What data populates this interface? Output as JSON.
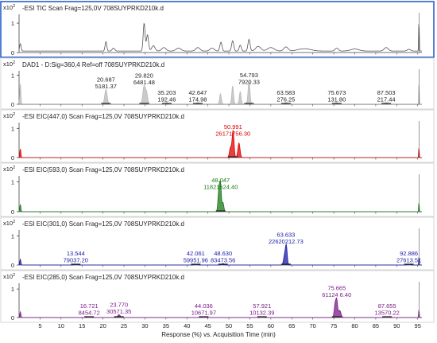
{
  "x_axis": {
    "label": "Response (%) vs. Acquisition Time (min)",
    "ticks": [
      5,
      10,
      15,
      20,
      25,
      30,
      35,
      40,
      45,
      50,
      55,
      60,
      65,
      70,
      75,
      80,
      85,
      90,
      95
    ],
    "range": [
      0,
      96
    ]
  },
  "chart_data": [
    {
      "type": "line",
      "title": "-ESI TIC Scan Frag=125,0V 708SUYPRKD210k.d",
      "ymult": "x10 2",
      "yticks": [
        "1",
        "0"
      ],
      "ylim": [
        0,
        1.3
      ],
      "color": "#555555",
      "fill": false,
      "selected": true,
      "baseline": 0.05,
      "peaks": [
        [
          0.3,
          0.25,
          0.18
        ],
        [
          20.7,
          0.32,
          0.2
        ],
        [
          22.5,
          0.1,
          0.3
        ],
        [
          29.8,
          0.95,
          0.22
        ],
        [
          30.6,
          0.55,
          0.25
        ],
        [
          32,
          0.18,
          0.4
        ],
        [
          34.5,
          0.12,
          0.5
        ],
        [
          38,
          0.1,
          0.6
        ],
        [
          42.6,
          0.12,
          0.5
        ],
        [
          46,
          0.1,
          0.5
        ],
        [
          48.1,
          0.3,
          0.25
        ],
        [
          50.9,
          0.35,
          0.25
        ],
        [
          52.7,
          0.2,
          0.25
        ],
        [
          54.8,
          0.4,
          0.25
        ],
        [
          57,
          0.16,
          0.6
        ],
        [
          60,
          0.12,
          0.8
        ],
        [
          63.6,
          0.14,
          0.5
        ],
        [
          68,
          0.08,
          1.5
        ],
        [
          75.7,
          0.1,
          0.4
        ],
        [
          80,
          0.07,
          1
        ],
        [
          87.5,
          0.12,
          0.5
        ],
        [
          92.9,
          0.06,
          0.4
        ],
        [
          95.3,
          1.25,
          0.06
        ]
      ],
      "annotations": []
    },
    {
      "type": "area",
      "title": "DAD1 - D:Sig=360,4  Ref=off 708SUYPRKD210k.d",
      "ymult": "x10 2",
      "yticks": [
        "1",
        "0"
      ],
      "ylim": [
        0,
        1.15
      ],
      "color": "#b8b8b8",
      "fill": true,
      "selected": false,
      "baseline": 0.01,
      "peaks": [
        [
          0.3,
          0.7,
          0.12
        ],
        [
          20.7,
          0.5,
          0.28
        ],
        [
          29.8,
          0.62,
          0.3
        ],
        [
          30.4,
          0.35,
          0.25
        ],
        [
          35.2,
          0.05,
          0.3
        ],
        [
          42.6,
          0.05,
          0.3
        ],
        [
          48,
          0.35,
          0.2
        ],
        [
          50.9,
          0.62,
          0.2
        ],
        [
          52.7,
          0.42,
          0.2
        ],
        [
          54.8,
          0.8,
          0.22
        ],
        [
          63.6,
          0.05,
          0.3
        ],
        [
          75.7,
          0.05,
          0.3
        ],
        [
          87.5,
          0.05,
          0.3
        ],
        [
          95.3,
          0.9,
          0.06
        ]
      ],
      "annotations": [
        {
          "t": "20.687",
          "v": "5181.37",
          "x": 20.7
        },
        {
          "t": "29.820",
          "v": "6481.48",
          "x": 29.8
        },
        {
          "t": "35.203",
          "v": "192.46",
          "x": 35.2
        },
        {
          "t": "42.647",
          "v": "174.98",
          "x": 42.6
        },
        {
          "t": "54.793",
          "v": "7920.33",
          "x": 54.8
        },
        {
          "t": "63.583",
          "v": "276.25",
          "x": 63.6
        },
        {
          "t": "75.673",
          "v": "131.80",
          "x": 75.7
        },
        {
          "t": "87.503",
          "v": "217.44",
          "x": 87.5
        }
      ]
    },
    {
      "type": "line",
      "title": "-ESI EIC(447,0) Scan Frag=125,0V 708SUYPRKD210k.d",
      "ymult": "x10 2",
      "yticks": [
        "1",
        "0"
      ],
      "ylim": [
        0,
        1.2
      ],
      "color": "#dd0000",
      "fill": true,
      "selected": false,
      "baseline": 0.0,
      "peaks": [
        [
          0.3,
          0.3,
          0.12
        ],
        [
          50.4,
          0.35,
          0.25
        ],
        [
          51.0,
          0.92,
          0.22
        ],
        [
          52.4,
          0.5,
          0.25
        ],
        [
          95.3,
          0.5,
          0.05
        ]
      ],
      "annotations": [
        {
          "t": "50.991",
          "v": "26171756.30",
          "x": 50.99
        }
      ]
    },
    {
      "type": "line",
      "title": "-ESI EIC(593,0) Scan Frag=125,0V 708SUYPRKD210k.d",
      "ymult": "x10 2",
      "yticks": [
        "1",
        "0"
      ],
      "ylim": [
        0,
        1.2
      ],
      "color": "#1a7a1a",
      "fill": true,
      "selected": false,
      "baseline": 0.0,
      "peaks": [
        [
          0.3,
          0.25,
          0.12
        ],
        [
          47.6,
          0.7,
          0.2
        ],
        [
          48.0,
          0.92,
          0.2
        ],
        [
          48.6,
          0.3,
          0.2
        ],
        [
          95.3,
          0.45,
          0.05
        ]
      ],
      "annotations": [
        {
          "t": "48.047",
          "v": "11821524.40",
          "x": 48.05
        }
      ]
    },
    {
      "type": "line",
      "title": "-ESI EIC(301,0) Scan Frag=125,0V 708SUYPRKD210k.d",
      "ymult": "x10 2",
      "yticks": [
        "1",
        "0"
      ],
      "ylim": [
        0,
        1.2
      ],
      "color": "#1a1aaa",
      "fill": true,
      "selected": false,
      "baseline": 0.0,
      "peaks": [
        [
          0.3,
          0.2,
          0.12
        ],
        [
          13.5,
          0.02,
          0.3
        ],
        [
          42.1,
          0.03,
          0.3
        ],
        [
          48.6,
          0.05,
          0.3
        ],
        [
          63.3,
          0.35,
          0.25
        ],
        [
          63.7,
          0.6,
          0.2
        ],
        [
          92.9,
          0.03,
          0.3
        ],
        [
          95.3,
          0.4,
          0.05
        ]
      ],
      "annotations": [
        {
          "t": "13.544",
          "v": "79037.20",
          "x": 13.5
        },
        {
          "t": "42.061",
          "v": "59951.96",
          "x": 42.1
        },
        {
          "t": "48.630",
          "v": "83473.56",
          "x": 48.6
        },
        {
          "t": "63.633",
          "v": "22620212.73",
          "x": 63.6
        },
        {
          "t": "92.886",
          "v": "27613.51",
          "x": 92.9
        }
      ]
    },
    {
      "type": "line",
      "title": "-ESI EIC(285,0) Scan Frag=125,0V 708SUYPRKD210k.d",
      "ymult": "x10 2",
      "yticks": [
        "1",
        "0"
      ],
      "ylim": [
        0,
        1.2
      ],
      "color": "#7a1a8a",
      "fill": true,
      "selected": false,
      "baseline": 0.0,
      "peaks": [
        [
          0.3,
          0.2,
          0.12
        ],
        [
          16.7,
          0.03,
          0.3
        ],
        [
          23.8,
          0.1,
          0.3
        ],
        [
          44.0,
          0.03,
          0.3
        ],
        [
          57.9,
          0.03,
          0.3
        ],
        [
          75.3,
          0.45,
          0.2
        ],
        [
          75.7,
          0.6,
          0.2
        ],
        [
          76.4,
          0.25,
          0.3
        ],
        [
          87.7,
          0.03,
          0.3
        ],
        [
          95.3,
          0.4,
          0.05
        ]
      ],
      "annotations": [
        {
          "t": "16.721",
          "v": "8454.72",
          "x": 16.7
        },
        {
          "t": "23.770",
          "v": "30571.35",
          "x": 23.8
        },
        {
          "t": "44.036",
          "v": "10671.97",
          "x": 44.0
        },
        {
          "t": "57.921",
          "v": "10132.39",
          "x": 57.9
        },
        {
          "t": "75.665",
          "v": "61124 6.40",
          "x": 75.7
        },
        {
          "t": "87.655",
          "v": "13570.22",
          "x": 87.7
        }
      ]
    }
  ]
}
